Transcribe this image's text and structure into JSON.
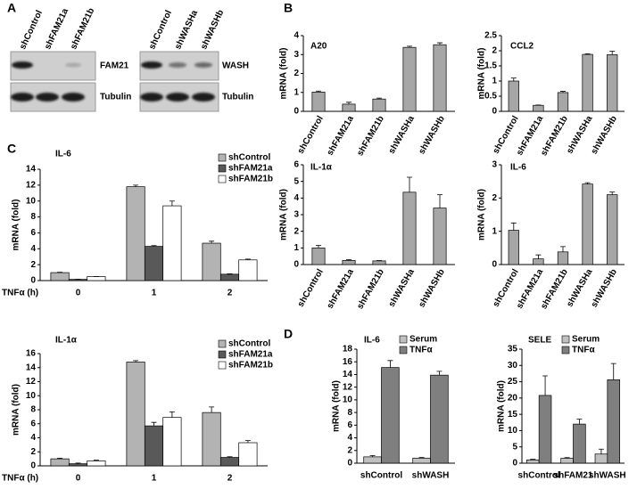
{
  "panel_letters": {
    "a": "A",
    "b": "B",
    "c": "C",
    "d": "D"
  },
  "panel_a": {
    "left_lanes": [
      "shControl",
      "shFAM21a",
      "shFAM21b"
    ],
    "left_rows": [
      "FAM21",
      "Tubulin"
    ],
    "right_lanes": [
      "shControl",
      "shWASHa",
      "shWASHb"
    ],
    "right_rows": [
      "WASH",
      "Tubulin"
    ]
  },
  "chart_data": [
    {
      "type": "bar",
      "title": "A20",
      "y_label": "mRNA (fold)",
      "categories": [
        "shControl",
        "shFAM21a",
        "shFAM21b",
        "shWASHa",
        "shWASHb"
      ],
      "values": [
        1.02,
        0.38,
        0.65,
        3.38,
        3.52
      ],
      "errors": [
        0.05,
        0.1,
        0.05,
        0.06,
        0.1
      ],
      "color": "#a6a6a6",
      "ylim": [
        0,
        4
      ],
      "yticks": [
        0,
        1,
        2,
        3,
        4
      ]
    },
    {
      "type": "bar",
      "title": "CCL2",
      "y_label": "mRNA (fold)",
      "categories": [
        "shControl",
        "shFAM21a",
        "shFAM21b",
        "shWASHa",
        "shWASHb"
      ],
      "values": [
        1.0,
        0.2,
        0.62,
        1.88,
        1.87
      ],
      "errors": [
        0.1,
        0.01,
        0.04,
        0.02,
        0.12
      ],
      "color": "#a6a6a6",
      "ylim": [
        0,
        2.5
      ],
      "yticks": [
        0,
        0.5,
        1,
        1.5,
        2,
        2.5
      ]
    },
    {
      "type": "bar",
      "title": "IL-1α",
      "y_label": "mRNA (fold)",
      "categories": [
        "shControl",
        "shFAM21a",
        "shFAM21b",
        "shWASHa",
        "shWASHb"
      ],
      "values": [
        1.0,
        0.25,
        0.22,
        4.35,
        3.4
      ],
      "errors": [
        0.15,
        0.05,
        0.02,
        0.9,
        0.8
      ],
      "color": "#a6a6a6",
      "ylim": [
        0,
        6
      ],
      "yticks": [
        0,
        1,
        2,
        3,
        4,
        5,
        6
      ]
    },
    {
      "type": "bar",
      "title": "IL-6",
      "y_label": "mRNA (fold)",
      "categories": [
        "shControl",
        "shFAM21a",
        "shFAM21b",
        "shWASHa",
        "shWASHb"
      ],
      "values": [
        1.03,
        0.17,
        0.38,
        2.42,
        2.1
      ],
      "errors": [
        0.22,
        0.12,
        0.16,
        0.04,
        0.08
      ],
      "color": "#a6a6a6",
      "ylim": [
        0,
        3
      ],
      "yticks": [
        0,
        1,
        2,
        3
      ]
    },
    {
      "type": "bar",
      "title": "IL-6",
      "y_label": "mRNA (fold)",
      "x_label": "TNFα (h)",
      "categories": [
        "0",
        "1",
        "2"
      ],
      "legend": "upper right",
      "series": [
        {
          "name": "shControl",
          "color": "#b3b3b3",
          "values": [
            1.0,
            11.8,
            4.7
          ],
          "errors": [
            0.05,
            0.2,
            0.25
          ]
        },
        {
          "name": "shFAM21a",
          "color": "#595959",
          "values": [
            0.15,
            4.3,
            0.8
          ],
          "errors": [
            0.02,
            0.1,
            0.05
          ]
        },
        {
          "name": "shFAM21b",
          "color": "#ffffff",
          "values": [
            0.5,
            9.4,
            2.6
          ],
          "errors": [
            0.02,
            0.6,
            0.1
          ]
        }
      ],
      "ylim": [
        0,
        14
      ],
      "yticks": [
        0,
        2,
        4,
        6,
        8,
        10,
        12,
        14
      ]
    },
    {
      "type": "bar",
      "title": "IL-1α",
      "y_label": "mRNA (fold)",
      "x_label": "TNFα (h)",
      "categories": [
        "0",
        "1",
        "2"
      ],
      "legend": "upper right",
      "series": [
        {
          "name": "shControl",
          "color": "#b3b3b3",
          "values": [
            1.0,
            14.8,
            7.6
          ],
          "errors": [
            0.1,
            0.2,
            0.8
          ]
        },
        {
          "name": "shFAM21a",
          "color": "#595959",
          "values": [
            0.3,
            5.7,
            1.2
          ],
          "errors": [
            0.1,
            0.5,
            0.1
          ]
        },
        {
          "name": "shFAM21b",
          "color": "#ffffff",
          "values": [
            0.7,
            6.9,
            3.3
          ],
          "errors": [
            0.1,
            0.8,
            0.3
          ]
        }
      ],
      "ylim": [
        0,
        16
      ],
      "yticks": [
        0,
        2,
        4,
        6,
        8,
        10,
        12,
        14,
        16
      ]
    },
    {
      "type": "bar",
      "title": "IL-6",
      "y_label": "mRNA (fold)",
      "categories": [
        "shControl",
        "shWASH"
      ],
      "legend": "upper right",
      "series": [
        {
          "name": "Serum",
          "color": "#c0c0c0",
          "values": [
            1.0,
            0.8
          ],
          "errors": [
            0.2,
            0.1
          ]
        },
        {
          "name": "TNFα",
          "color": "#7f7f7f",
          "values": [
            15.1,
            13.9
          ],
          "errors": [
            1.1,
            0.6
          ]
        }
      ],
      "ylim": [
        0,
        18
      ],
      "yticks": [
        0,
        2,
        4,
        6,
        8,
        10,
        12,
        14,
        16,
        18
      ]
    },
    {
      "type": "bar",
      "title": "SELE",
      "y_label": "mRNA (fold)",
      "categories": [
        "shControl",
        "shFAM21",
        "shWASH"
      ],
      "legend": "upper right",
      "series": [
        {
          "name": "Serum",
          "color": "#c0c0c0",
          "values": [
            1.0,
            1.5,
            2.8
          ],
          "errors": [
            0.2,
            0.2,
            1.5
          ]
        },
        {
          "name": "TNFα",
          "color": "#7f7f7f",
          "values": [
            20.8,
            12.0,
            25.6
          ],
          "errors": [
            6,
            1.5,
            5
          ]
        }
      ],
      "ylim": [
        0,
        35
      ],
      "yticks": [
        0,
        5,
        10,
        15,
        20,
        25,
        30,
        35
      ]
    }
  ]
}
